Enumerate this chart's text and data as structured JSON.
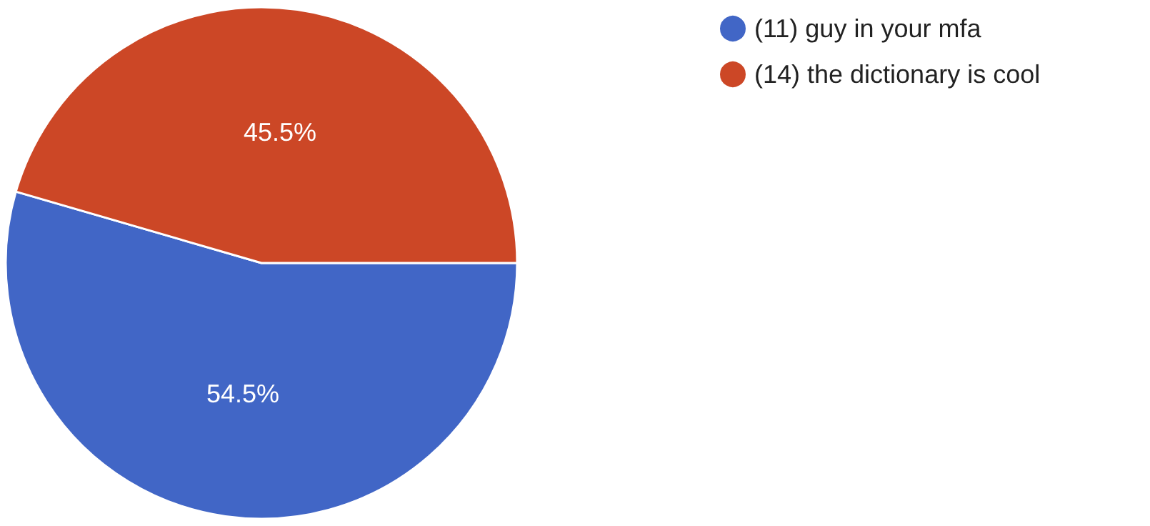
{
  "chart_data": {
    "type": "pie",
    "categories": [
      "(11) guy in your mfa",
      "(14) the dictionary is cool"
    ],
    "values": [
      54.5,
      45.5
    ],
    "colors": [
      "#4166c6",
      "#cc4726"
    ],
    "value_labels": [
      "54.5%",
      "45.5%"
    ],
    "legend": "top right"
  }
}
